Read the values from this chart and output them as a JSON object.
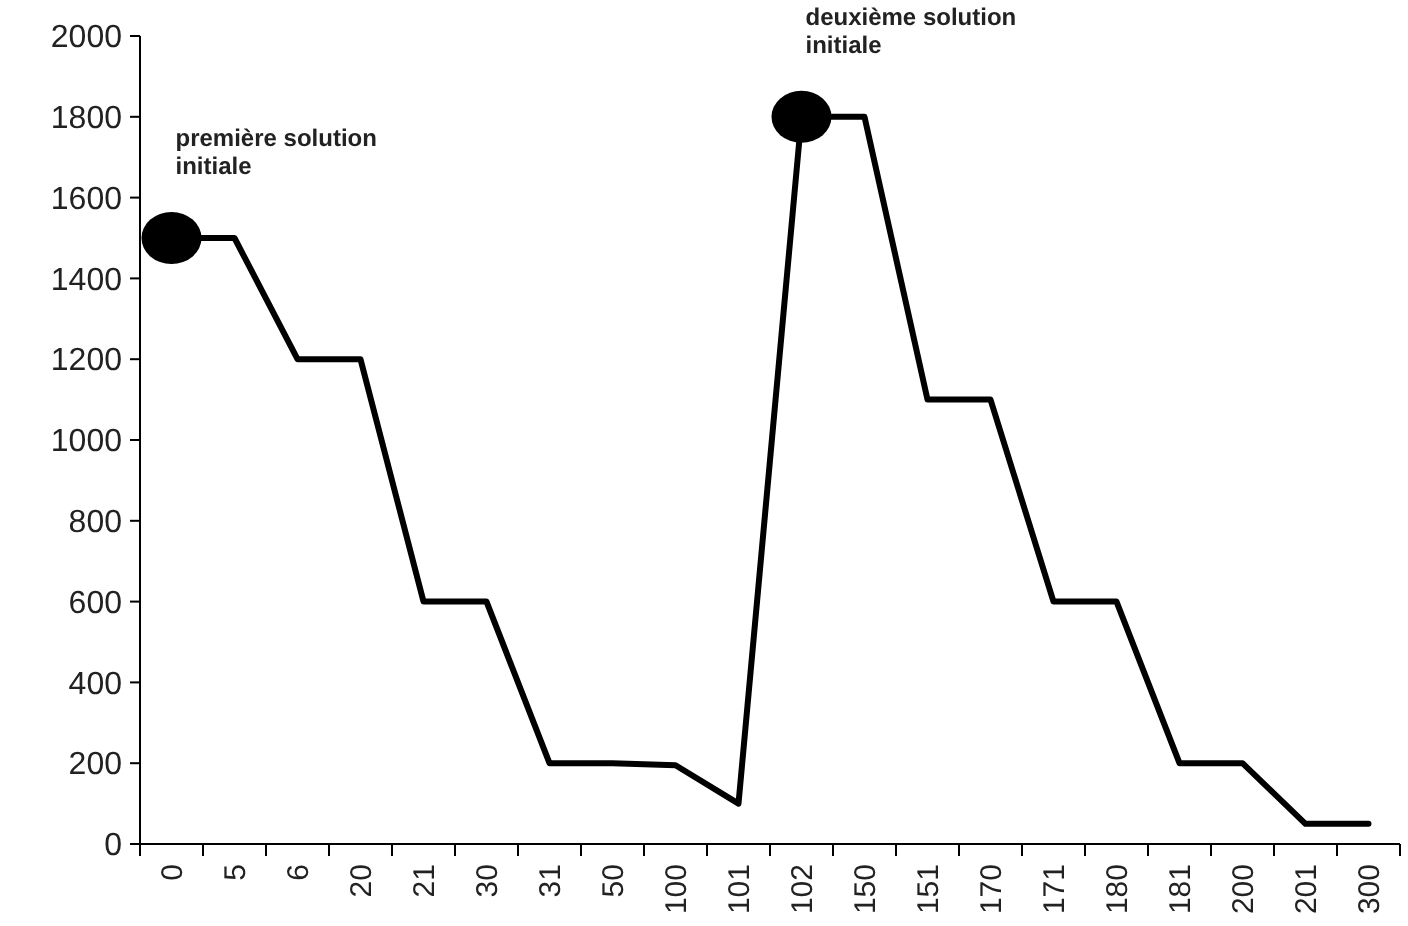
{
  "chart_data": {
    "type": "line",
    "categories": [
      "0",
      "5",
      "6",
      "20",
      "21",
      "30",
      "31",
      "50",
      "100",
      "101",
      "102",
      "150",
      "151",
      "170",
      "171",
      "180",
      "181",
      "200",
      "201",
      "300"
    ],
    "series": [
      {
        "color": "#000000",
        "marker": "none",
        "values": [
          1500,
          1500,
          1200,
          1200,
          600,
          600,
          200,
          200,
          195,
          100,
          1800,
          1800,
          1100,
          1100,
          600,
          600,
          200,
          200,
          50,
          50
        ]
      },
      {
        "type": "scatter",
        "color": "#000000",
        "marker": "circle",
        "x": [
          "0",
          "102"
        ],
        "values": [
          1500,
          1800
        ]
      }
    ],
    "ylim": [
      0,
      2000
    ],
    "yticks": [
      0,
      200,
      400,
      600,
      800,
      1000,
      1200,
      1400,
      1600,
      1800,
      2000
    ],
    "grid": false,
    "annotations": [
      "première solution initiale",
      "deuxième solution initiale"
    ]
  }
}
